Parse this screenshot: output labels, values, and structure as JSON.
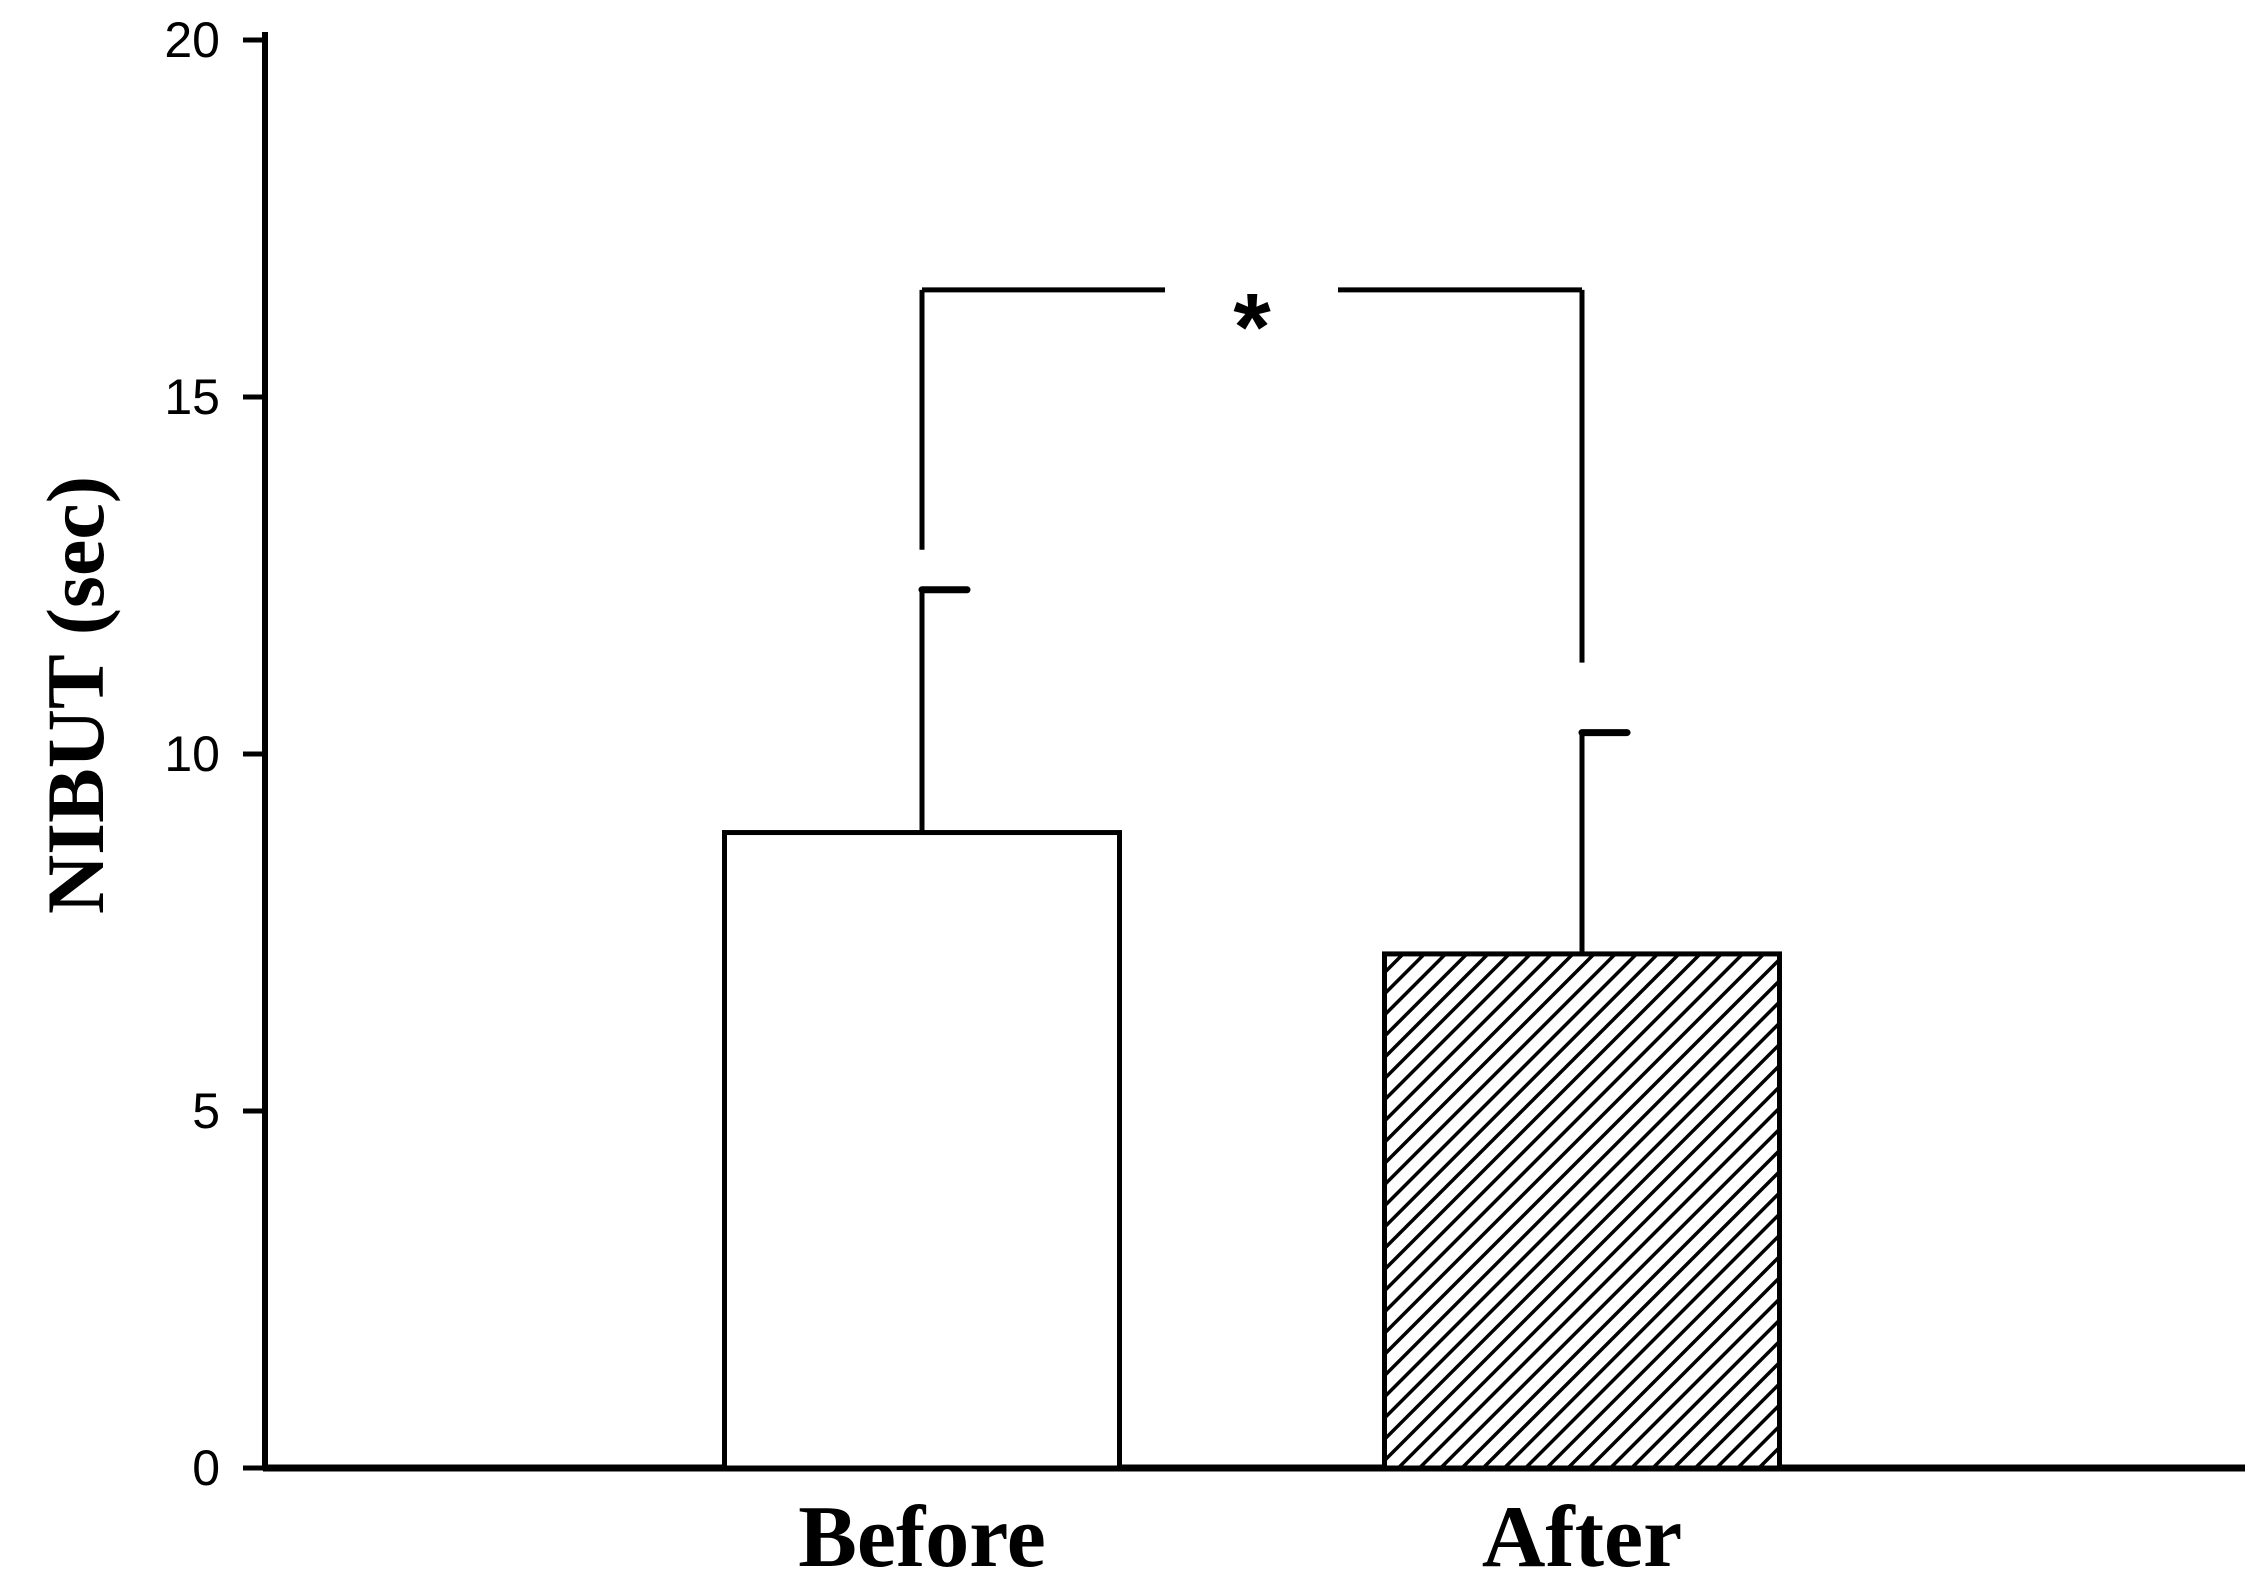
{
  "chart_data": {
    "type": "bar",
    "categories": [
      "Before",
      "After"
    ],
    "values": [
      8.9,
      7.2
    ],
    "error": [
      3.4,
      3.1
    ],
    "ylabel": "NIBUT (sec)",
    "xlabel": "",
    "ylim": [
      0,
      20
    ],
    "yticks": [
      0,
      5,
      10,
      15,
      20
    ],
    "ytick_labels": [
      "0",
      "5",
      "10",
      "15",
      "20"
    ],
    "bar_fills": [
      "none",
      "diagonal-hatch"
    ],
    "bar_color": "#ffffff",
    "stroke_color": "#000000",
    "significance": {
      "between": [
        "Before",
        "After"
      ],
      "label": "*",
      "y": 16.5
    },
    "grid": false,
    "legend": "none"
  }
}
